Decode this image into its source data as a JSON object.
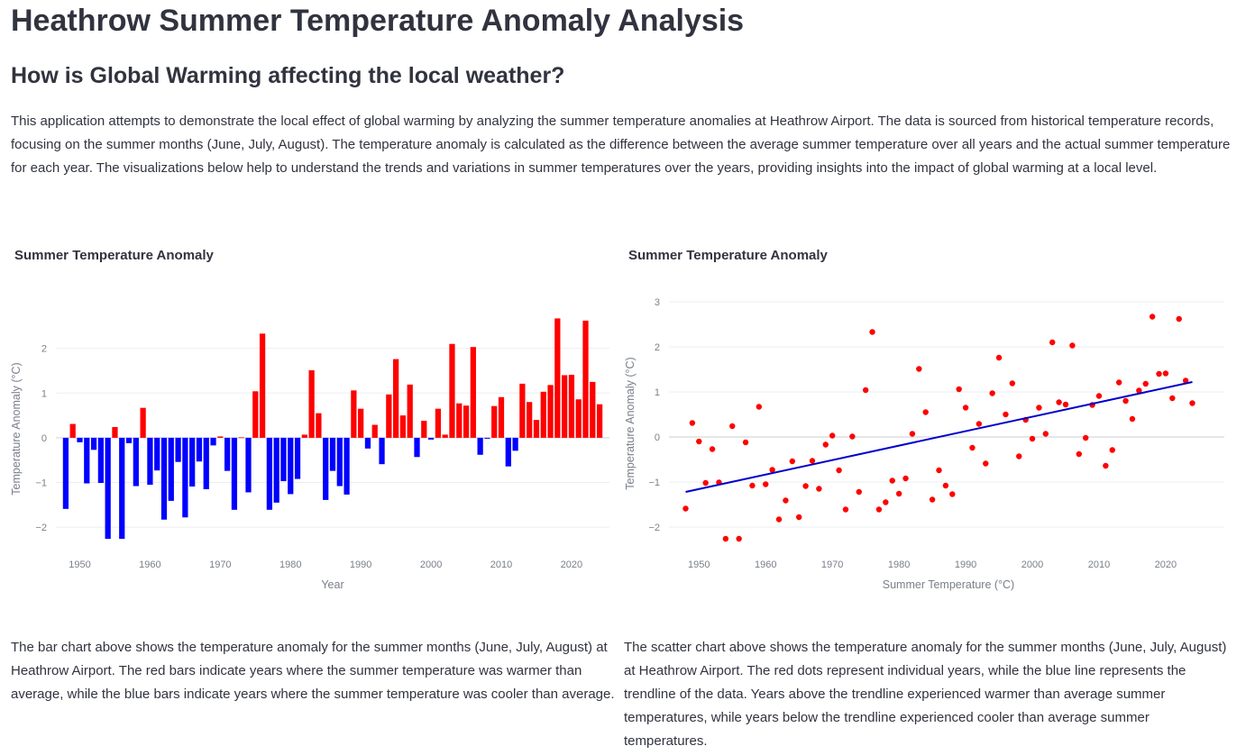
{
  "header": {
    "title": "Heathrow Summer Temperature Anomaly Analysis",
    "subtitle": "How is Global Warming affecting the local weather?",
    "intro": "This application attempts to demonstrate the local effect of global warming by analyzing the summer temperature anomalies at Heathrow Airport. The data is sourced from historical temperature records, focusing on the summer months (June, July, August). The temperature anomaly is calculated as the difference between the average summer temperature over all years and the actual summer temperature for each year. The visualizations below help to understand the trends and variations in summer temperatures over the years, providing insights into the impact of global warming at a local level."
  },
  "descriptions": {
    "bar": "The bar chart above shows the temperature anomaly for the summer months (June, July, August) at Heathrow Airport. The red bars indicate years where the summer temperature was warmer than average, while the blue bars indicate years where the summer temperature was cooler than average.",
    "scatter": "The scatter chart above shows the temperature anomaly for the summer months (June, July, August) at Heathrow Airport. The red dots represent individual years, while the blue line represents the trendline of the data. Years above the trendline experienced warmer than average summer temperatures, while years below the trendline experienced cooler than average summer temperatures."
  },
  "colors": {
    "warm": "#ff0000",
    "cool": "#0000ff",
    "trend": "#0000cc"
  },
  "chart_data": [
    {
      "type": "bar",
      "title": "Summer Temperature Anomaly",
      "xlabel": "Year",
      "ylabel": "Temperature Anomaly (°C)",
      "xlim": [
        1946.6,
        2025.4
      ],
      "ylim": [
        -2.5,
        2.9
      ],
      "xticks": [
        1950,
        1960,
        1970,
        1980,
        1990,
        2000,
        2010,
        2020
      ],
      "yticks": [
        -2,
        -1,
        0,
        1,
        2
      ],
      "ytick_labels": [
        "−2",
        "−1",
        "0",
        "1",
        "2"
      ],
      "grid": true,
      "x": [
        1948,
        1949,
        1950,
        1951,
        1952,
        1953,
        1954,
        1955,
        1956,
        1957,
        1958,
        1959,
        1960,
        1961,
        1962,
        1963,
        1964,
        1965,
        1966,
        1967,
        1968,
        1969,
        1970,
        1971,
        1972,
        1973,
        1974,
        1975,
        1976,
        1977,
        1978,
        1979,
        1980,
        1981,
        1982,
        1983,
        1984,
        1985,
        1986,
        1987,
        1988,
        1989,
        1990,
        1991,
        1992,
        1993,
        1994,
        1995,
        1996,
        1997,
        1998,
        1999,
        2000,
        2001,
        2002,
        2003,
        2004,
        2005,
        2006,
        2007,
        2008,
        2009,
        2010,
        2011,
        2012,
        2013,
        2014,
        2015,
        2016,
        2017,
        2018,
        2019,
        2020,
        2021,
        2022,
        2023,
        2024
      ],
      "values": [
        -1.59,
        0.31,
        -0.1,
        -1.02,
        -0.27,
        -1.01,
        -2.26,
        0.24,
        -2.26,
        -0.12,
        -1.08,
        0.67,
        -1.05,
        -0.73,
        -1.83,
        -1.41,
        -0.54,
        -1.78,
        -1.09,
        -0.53,
        -1.15,
        -0.17,
        0.03,
        -0.74,
        -1.61,
        0.01,
        -1.22,
        1.04,
        2.33,
        -1.61,
        -1.45,
        -0.97,
        -1.26,
        -0.92,
        0.07,
        1.51,
        0.55,
        -1.39,
        -0.74,
        -1.08,
        -1.27,
        1.06,
        0.65,
        -0.24,
        0.29,
        -0.59,
        0.97,
        1.76,
        0.5,
        1.19,
        -0.43,
        0.38,
        -0.04,
        0.65,
        0.07,
        2.1,
        0.77,
        0.72,
        2.03,
        -0.38,
        -0.02,
        0.71,
        0.91,
        -0.64,
        -0.29,
        1.21,
        0.8,
        0.4,
        1.03,
        1.18,
        2.67,
        1.4,
        1.41,
        0.86,
        2.62,
        1.25,
        0.75
      ]
    },
    {
      "type": "scatter",
      "title": "Summer Temperature Anomaly",
      "xlabel": "Summer Temperature (°C)",
      "ylabel": "Temperature Anomaly (°C)",
      "xlim": [
        1945.5,
        2028.8
      ],
      "ylim": [
        -2.5,
        3.1
      ],
      "xticks": [
        1950,
        1960,
        1970,
        1980,
        1990,
        2000,
        2010,
        2020
      ],
      "yticks": [
        -2,
        -1,
        0,
        1,
        2,
        3
      ],
      "ytick_labels": [
        "−2",
        "−1",
        "0",
        "1",
        "2",
        "3"
      ],
      "grid": true,
      "trendline": {
        "x": [
          1948,
          2024
        ],
        "y": [
          -1.22,
          1.22
        ]
      }
    }
  ]
}
